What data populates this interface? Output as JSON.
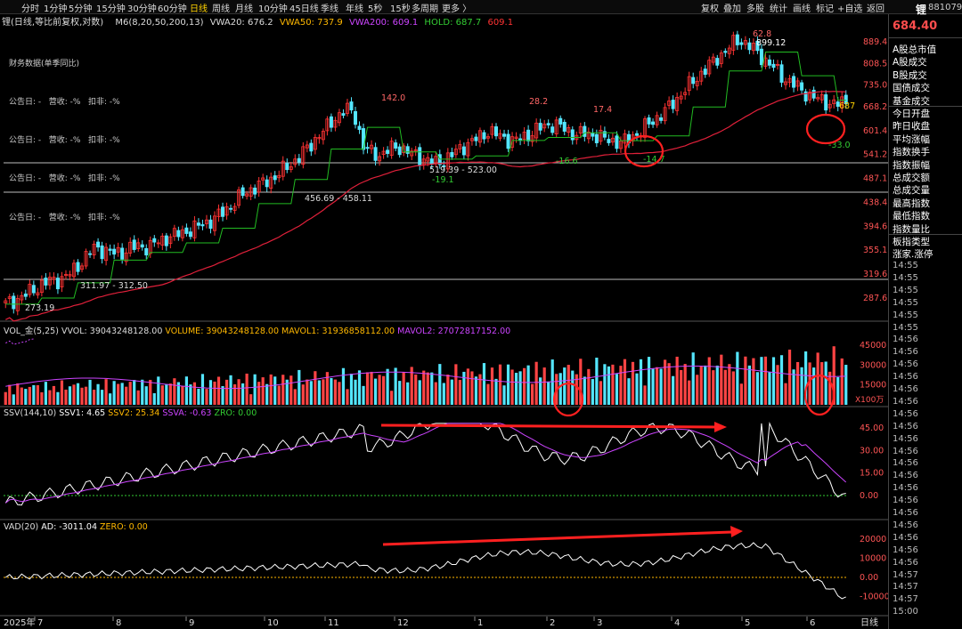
{
  "toolbar": {
    "periods": [
      "分时",
      "1分钟",
      "5分钟",
      "15分钟",
      "30分钟",
      "60分钟",
      "日线",
      "周线",
      "月线",
      "10分钟",
      "45日线",
      "季线",
      "年线",
      "5秒",
      "15秒",
      "多周期",
      "更多 〉"
    ],
    "selected": "日线",
    "right": [
      "复权",
      "叠加",
      "多股",
      "统计",
      "画线",
      "标记",
      "+自选",
      "返回"
    ]
  },
  "header": {
    "title": "锂(日线,等比前复权,对数)",
    "m6": "M6(8,20,50,200,13)",
    "vwa20": "VWA20: 676.2",
    "vwa50": "VWA50: 737.9",
    "vwa200": "VWA200: 609.1",
    "hold": "HOLD: 687.7",
    "hold2": "609.1"
  },
  "fin": {
    "title": "财务数据(单季同比)",
    "row": "公告日: -   营收: -%   扣非: -%"
  },
  "side": {
    "name": "锂",
    "code": "881079",
    "price": "684.40",
    "items": [
      "A股总市值",
      "A股成交",
      "B股成交",
      "国债成交",
      "基金成交",
      "今日开盘",
      "昨日收盘",
      "平均涨幅",
      "指数换手",
      "指数振幅",
      "总成交额",
      "总成交量",
      "最高指数",
      "最低指数",
      "指数量比",
      "板指类型",
      "涨家.涨停"
    ],
    "times": [
      "14:55",
      "14:55",
      "14:55",
      "14:55",
      "14:55",
      "14:55",
      "14:56",
      "14:56",
      "14:56",
      "14:56",
      "14:56",
      "14:56",
      "14:56",
      "14:56",
      "14:56",
      "14:56",
      "14:56",
      "14:56",
      "14:56",
      "14:56",
      "14:56",
      "14:56",
      "14:56",
      "14:56",
      "14:56",
      "14:57",
      "14:57",
      "14:57",
      "15:00"
    ]
  },
  "indicators": {
    "vol": {
      "name": "VOL_金(5,25)",
      "vvol": "VVOL: 39043248128.00",
      "volume": "VOLUME: 39043248128.00",
      "mavol1": "MAVOL1: 31936858112.00",
      "mavol2": "MAVOL2: 27072817152.00"
    },
    "ssv": {
      "name": "SSV(144,10)",
      "ssv1": "SSV1: 4.65",
      "ssv2": "SSV2: 25.34",
      "ssva": "SSVA: -0.63",
      "zro": "ZRO: 0.00"
    },
    "vad": {
      "name": "VAD(20)",
      "ad": "AD: -3011.04",
      "zero": "ZERO: 0.00"
    }
  },
  "chart_data": [
    {
      "type": "candlestick",
      "title": "锂(日线,等比前复权,对数)",
      "scale": "log",
      "yticks": [
        "889.4",
        "808.5",
        "735.0",
        "668.2",
        "601.4",
        "541.2",
        "487.1",
        "438.4",
        "394.6",
        "355.1",
        "319.6",
        "287.6"
      ],
      "xlabels": [
        "2025年",
        "7",
        "8",
        "9",
        "10",
        "11",
        "12",
        "1",
        "2",
        "3",
        "4",
        "5",
        "6",
        "日线"
      ],
      "annotations": [
        "273.19",
        "311.97 - 312.50",
        "142.0",
        "456.69 - 458.11",
        "519.39 - 523.00",
        "-19.1",
        "-16.6",
        "-14.7",
        "28.2",
        "17.4",
        "62.8",
        "899.12",
        "687",
        "-33.0"
      ],
      "close_series": [
        280,
        285,
        290,
        298,
        305,
        310,
        312,
        318,
        330,
        345,
        360,
        355,
        350,
        352,
        358,
        362,
        360,
        368,
        375,
        380,
        385,
        390,
        398,
        405,
        415,
        430,
        445,
        460,
        470,
        478,
        490,
        505,
        520,
        540,
        560,
        590,
        610,
        640,
        660,
        650,
        560,
        545,
        540,
        555,
        560,
        548,
        538,
        530,
        520,
        528,
        540,
        560,
        570,
        585,
        600,
        590,
        580,
        575,
        585,
        598,
        610,
        620,
        612,
        600,
        590,
        595,
        588,
        580,
        575,
        570,
        585,
        600,
        620,
        640,
        660,
        690,
        720,
        750,
        780,
        810,
        840,
        870,
        899,
        880,
        850,
        820,
        790,
        760,
        740,
        720,
        700,
        690,
        680,
        675,
        684
      ]
    },
    {
      "type": "bar",
      "title": "VOL_金(5,25)",
      "yticks": [
        "45000",
        "30000",
        "15000"
      ],
      "unit": "X100万"
    },
    {
      "type": "line",
      "title": "SSV(144,10)",
      "yticks": [
        "45.00",
        "30.00",
        "15.00",
        "0.00"
      ]
    },
    {
      "type": "line",
      "title": "VAD(20)",
      "yticks": [
        "20000",
        "10000",
        "0.00",
        "-10000"
      ]
    }
  ]
}
